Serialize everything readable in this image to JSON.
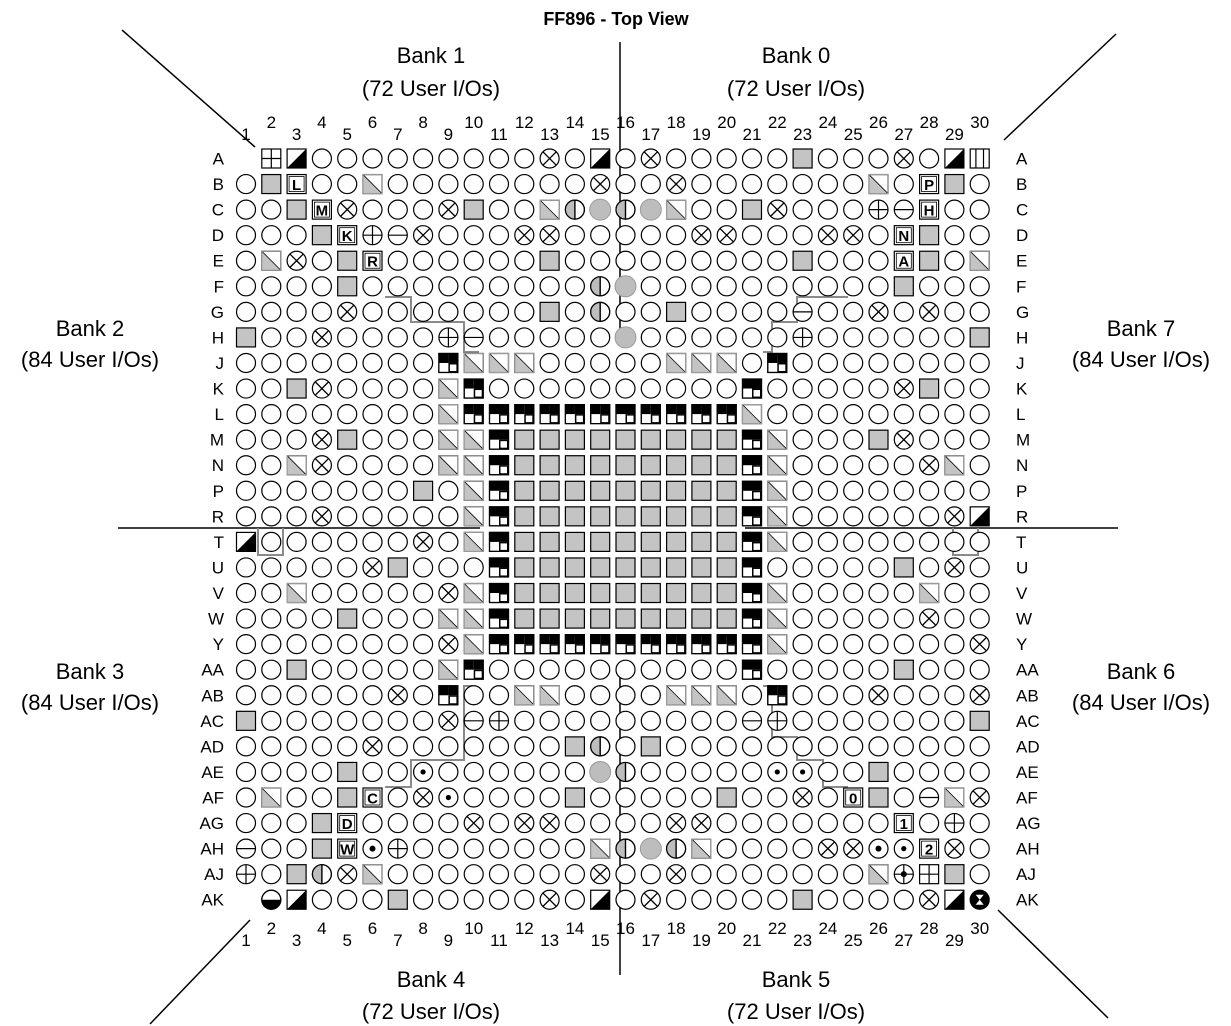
{
  "title": "FF896 - Top View",
  "banks": [
    {
      "name": "Bank 1",
      "ios": "(72 User I/Os)",
      "pos": "top-left"
    },
    {
      "name": "Bank 0",
      "ios": "(72 User I/Os)",
      "pos": "top-right"
    },
    {
      "name": "Bank 2",
      "ios": "(84 User I/Os)",
      "pos": "left-upper"
    },
    {
      "name": "Bank 7",
      "ios": "(84 User I/Os)",
      "pos": "right-upper"
    },
    {
      "name": "Bank 3",
      "ios": "(84 User I/Os)",
      "pos": "left-lower"
    },
    {
      "name": "Bank 6",
      "ios": "(84 User I/Os)",
      "pos": "right-lower"
    },
    {
      "name": "Bank 4",
      "ios": "(72 User I/Os)",
      "pos": "bottom-left"
    },
    {
      "name": "Bank 5",
      "ios": "(72 User I/Os)",
      "pos": "bottom-right"
    }
  ],
  "columns": [
    "1",
    "2",
    "3",
    "4",
    "5",
    "6",
    "7",
    "8",
    "9",
    "10",
    "11",
    "12",
    "13",
    "14",
    "15",
    "16",
    "17",
    "18",
    "19",
    "20",
    "21",
    "22",
    "23",
    "24",
    "25",
    "26",
    "27",
    "28",
    "29",
    "30"
  ],
  "rows": [
    "A",
    "B",
    "C",
    "D",
    "E",
    "F",
    "G",
    "H",
    "J",
    "K",
    "L",
    "M",
    "N",
    "P",
    "R",
    "T",
    "U",
    "V",
    "W",
    "Y",
    "AA",
    "AB",
    "AC",
    "AD",
    "AE",
    "AF",
    "AG",
    "AH",
    "AJ",
    "AK"
  ],
  "pin_types": {
    "o": "user-io",
    "s": "power",
    "d": "vref",
    "x": "no-connect",
    "c": "core-power-checker",
    "g": "config-shaded",
    "h": "half-filled-circle",
    "p": "plus-circle",
    "m": "minus-circle",
    "t": "dot-circle",
    "w": "half-filled-square",
    "b": "box-plus",
    "i": "box-bars"
  },
  "grid": [
    "_bw.........x.w.x.....s...x.wi",
    ".sL..d........x..x.......d.Ps.",
    "..sMx...xs..dhghgd..sx...pmH..",
    "...sKpmx...xx.....xx...xx.Ns..",
    ".dx.sR......s.........s...As.d",
    "....s.........hg..........s...",
    "....x.......s.h..s....m..x.x..",
    "s..x....pm.....g......p......s",
    "........cddd.....ddd.c........",
    "..sx....dc..........c.....xs..",
    "........dcccccccccccd.........",
    "...xs...ddcssssssssscd...sx...",
    "..dx....ddcssssssssscd.....xd.",
    ".......s.dcssssssssscd........",
    "...x.....dcssssssssscd......xw",
    "w......x.dcssssssssscd........",
    ".....xs...csssssssssc.....s.x.",
    "..d.....xdcssssssssscd.....d..",
    "....s...ddcssssssssscd.....x..",
    "........xdcccccccccccd.......x",
    "..s.....dc..........c.....s...",
    "......x.c..dd....ddd.c...x...x",
    "s.......xmp.........mp.......s",
    ".....x.......sh.s.............",
    "....s..t......gh.....tt..s....",
    ".d..sC.xt....s.....s..x.0s.mdx",
    "...sD....x.xx....xx.......1.p.",
    "m..sWtp.......dhghd....xx.t2x.",
    "p.shxd........x..x.......dpbs.",
    "_qw...s.....x.w.x.....s....xwr"
  ]
}
